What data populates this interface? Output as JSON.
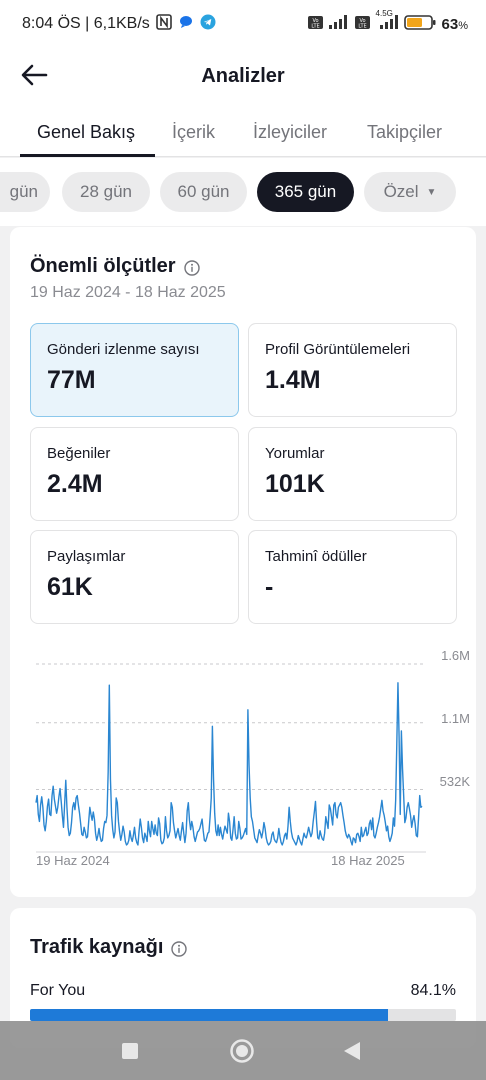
{
  "status_bar": {
    "time_speed": "8:04 ÖS | 6,1KB/s",
    "battery": "63",
    "battery_unit": "%",
    "network_label": "4.5G",
    "icons": [
      "n-icon",
      "chat-bubble-icon",
      "telegram-icon",
      "volte-icon",
      "signal-icon",
      "volte-icon",
      "signal-icon",
      "battery-icon"
    ]
  },
  "appbar": {
    "title": "Analizler"
  },
  "tabs": [
    {
      "label": "Genel Bakış",
      "active": true
    },
    {
      "label": "İçerik",
      "active": false
    },
    {
      "label": "İzleyiciler",
      "active": false
    },
    {
      "label": "Takipçiler",
      "active": false
    }
  ],
  "date_chips": [
    {
      "label": "gün",
      "active": false
    },
    {
      "label": "28 gün",
      "active": false
    },
    {
      "label": "60 gün",
      "active": false
    },
    {
      "label": "365 gün",
      "active": true
    },
    {
      "label": "Özel",
      "active": false
    }
  ],
  "key_metrics": {
    "title": "Önemli ölçütler",
    "date_range": "19 Haz 2024 - 18 Haz 2025",
    "items": [
      {
        "label": "Gönderi izlenme sayısı",
        "value": "77M",
        "selected": true
      },
      {
        "label": "Profil Görüntülemeleri",
        "value": "1.4M",
        "selected": false
      },
      {
        "label": "Beğeniler",
        "value": "2.4M",
        "selected": false
      },
      {
        "label": "Yorumlar",
        "value": "101K",
        "selected": false
      },
      {
        "label": "Paylaşımlar",
        "value": "61K",
        "selected": false
      },
      {
        "label": "Tahminî ödüller",
        "value": "-",
        "selected": false
      }
    ]
  },
  "chart_data": {
    "type": "line",
    "title": "",
    "xlabel": "",
    "ylabel": "",
    "x_tick_labels": [
      "19 Haz 2024",
      "18 Haz 2025"
    ],
    "y_tick_labels": [
      "1.6M",
      "1.1M",
      "532K"
    ],
    "ylim": [
      0,
      1600000
    ],
    "grid": true,
    "color": "#2a86d1",
    "series": [
      {
        "values": [
          420000,
          480000,
          320000,
          260000,
          400000,
          470000,
          380000,
          230000,
          180000,
          260000,
          390000,
          450000,
          320000,
          310000,
          480000,
          560000,
          450000,
          390000,
          330000,
          380000,
          470000,
          540000,
          430000,
          310000,
          210000,
          410000,
          610000,
          380000,
          210000,
          140000,
          160000,
          250000,
          380000,
          420000,
          360000,
          460000,
          480000,
          400000,
          330000,
          240000,
          150000,
          140000,
          210000,
          170000,
          120000,
          130000,
          260000,
          380000,
          320000,
          270000,
          340000,
          280000,
          160000,
          100000,
          140000,
          200000,
          130000,
          90000,
          100000,
          200000,
          260000,
          250000,
          310000,
          680000,
          1420000,
          620000,
          310000,
          190000,
          120000,
          170000,
          460000,
          420000,
          260000,
          170000,
          100000,
          150000,
          220000,
          170000,
          90000,
          60000,
          70000,
          100000,
          180000,
          120000,
          90000,
          140000,
          210000,
          120000,
          80000,
          60000,
          180000,
          280000,
          210000,
          120000,
          80000,
          160000,
          130000,
          90000,
          260000,
          180000,
          130000,
          260000,
          200000,
          150000,
          230000,
          160000,
          140000,
          290000,
          240000,
          100000,
          70000,
          80000,
          120000,
          300000,
          180000,
          120000,
          140000,
          180000,
          420000,
          380000,
          250000,
          180000,
          120000,
          160000,
          200000,
          140000,
          100000,
          180000,
          250000,
          160000,
          80000,
          160000,
          350000,
          420000,
          270000,
          190000,
          260000,
          210000,
          130000,
          90000,
          130000,
          170000,
          180000,
          200000,
          240000,
          280000,
          180000,
          100000,
          90000,
          120000,
          160000,
          170000,
          300000,
          460000,
          1070000,
          620000,
          330000,
          180000,
          140000,
          230000,
          140000,
          210000,
          150000,
          110000,
          170000,
          220000,
          190000,
          160000,
          330000,
          260000,
          120000,
          100000,
          190000,
          300000,
          160000,
          110000,
          120000,
          260000,
          200000,
          110000,
          120000,
          140000,
          170000,
          200000,
          150000,
          1210000,
          740000,
          460000,
          300000,
          260000,
          190000,
          120000,
          100000,
          80000,
          140000,
          190000,
          160000,
          120000,
          170000,
          250000,
          200000,
          120000,
          80000,
          60000,
          70000,
          90000,
          150000,
          170000,
          110000,
          90000,
          80000,
          120000,
          200000,
          130000,
          80000,
          60000,
          90000,
          140000,
          160000,
          110000,
          220000,
          380000,
          260000,
          170000,
          120000,
          100000,
          80000,
          60000,
          90000,
          140000,
          110000,
          80000,
          60000,
          110000,
          160000,
          130000,
          120000,
          160000,
          210000,
          170000,
          130000,
          160000,
          260000,
          340000,
          430000,
          250000,
          120000,
          110000,
          180000,
          140000,
          110000,
          100000,
          160000,
          300000,
          250000,
          200000,
          400000,
          370000,
          300000,
          230000,
          400000,
          420000,
          320000,
          290000,
          380000,
          400000,
          420000,
          380000,
          310000,
          250000,
          180000,
          140000,
          120000,
          150000,
          130000,
          90000,
          60000,
          120000,
          110000,
          80000,
          150000,
          160000,
          130000,
          90000,
          210000,
          130000,
          140000,
          180000,
          210000,
          140000,
          160000,
          240000,
          270000,
          190000,
          290000,
          140000,
          120000,
          160000,
          210000,
          250000,
          300000,
          370000,
          440000,
          350000,
          310000,
          250000,
          180000,
          220000,
          130000,
          90000,
          120000,
          160000,
          290000,
          220000,
          440000,
          920000,
          1440000,
          980000,
          320000,
          1030000,
          710000,
          480000,
          250000,
          290000,
          380000,
          420000,
          370000,
          310000,
          210000,
          270000,
          310000,
          240000,
          140000,
          130000,
          290000,
          480000,
          380000,
          390000
        ]
      }
    ]
  },
  "traffic": {
    "title": "Trafik kaynağı",
    "row_label": "For You",
    "row_value": "84.1%",
    "fraction": 0.841
  }
}
